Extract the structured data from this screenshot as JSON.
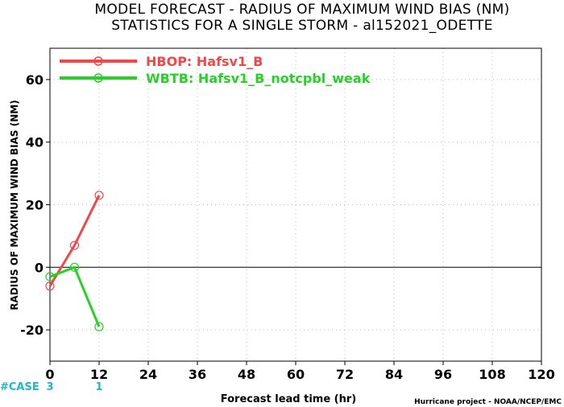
{
  "title_line1": "MODEL FORECAST - RADIUS OF MAXIMUM WIND BIAS (NM)",
  "title_line2": "STATISTICS FOR A SINGLE STORM - al152021_ODETTE",
  "credit": "Hurricane project - NOAA/NCEP/EMC",
  "case_label": "#CASE",
  "cases": [
    {
      "x": 0,
      "count": "3"
    },
    {
      "x": 12,
      "count": "1"
    }
  ],
  "colors": {
    "case": "#20b8c8",
    "zero_line": "#000000",
    "grid": "#bbbbbb"
  },
  "chart_data": {
    "type": "line",
    "xlabel": "Forecast lead time (hr)",
    "ylabel": "RADIUS OF MAXIMUM WIND BIAS (NM)",
    "xlim": [
      0,
      120
    ],
    "ylim": [
      -30,
      70
    ],
    "xticks": [
      0,
      12,
      24,
      36,
      48,
      60,
      72,
      84,
      96,
      108,
      120
    ],
    "yticks": [
      -20,
      0,
      20,
      40,
      60
    ],
    "grid": true,
    "legend_position": "top-left",
    "series": [
      {
        "name": "HBOP: Hafsv1_B",
        "color": "#f04848",
        "x": [
          0,
          6,
          12
        ],
        "y": [
          -6,
          7,
          23
        ]
      },
      {
        "name": "WBTB: Hafsv1_B_notcpbl_weak",
        "color": "#28d028",
        "x": [
          0,
          6,
          12
        ],
        "y": [
          -3,
          0,
          -19
        ]
      }
    ]
  }
}
